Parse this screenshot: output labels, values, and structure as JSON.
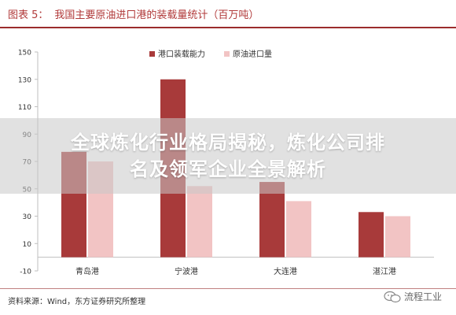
{
  "figure": {
    "label": "图表 5：",
    "title": "我国主要原油进口港的装载量统计（百万吨）"
  },
  "banner": {
    "line1": "全球炼化行业格局揭秘，炼化公司排",
    "line2": "名及领军企业全景解析"
  },
  "footer": {
    "source": "资料来源：Wind，东方证券研究所整理",
    "watermark": "流程工业"
  },
  "colors": {
    "series1": "#a83a3a",
    "series2": "#f2c4c4",
    "accent": "#b13a3a"
  },
  "chart_data": {
    "type": "bar",
    "title": "我国主要原油进口港的装载量统计（百万吨）",
    "categories": [
      "青岛港",
      "宁波港",
      "大连港",
      "湛江港"
    ],
    "series": [
      {
        "name": "港口装载能力",
        "values": [
          77,
          130,
          55,
          33
        ]
      },
      {
        "name": "原油进口量",
        "values": [
          70,
          52,
          41,
          30
        ]
      }
    ],
    "ylim": [
      -10,
      150
    ],
    "yticks": [
      -10,
      10,
      30,
      50,
      70,
      90,
      110,
      130,
      150
    ],
    "xlabel": "",
    "ylabel": "",
    "legend_position": "top-center",
    "grid": false
  }
}
